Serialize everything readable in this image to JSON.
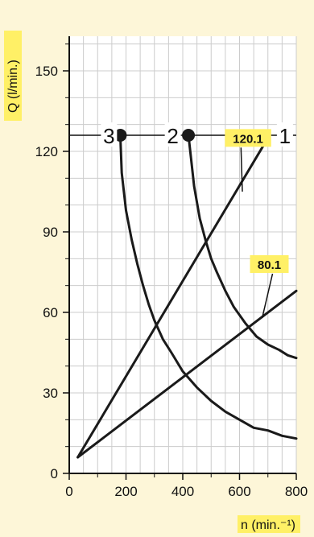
{
  "chart_data": {
    "type": "line",
    "xlabel": "n (min.⁻¹)",
    "ylabel": "Q (l/min.)",
    "xlim": [
      0,
      800
    ],
    "ylim": [
      0,
      165
    ],
    "xticks": [
      0,
      200,
      400,
      600,
      800
    ],
    "yticks": [
      0,
      30,
      60,
      90,
      120,
      150
    ],
    "grid": true,
    "reference_line_y": 126,
    "series": [
      {
        "name": "1",
        "kind": "line",
        "x": [
          30,
          700
        ],
        "y": [
          6,
          125
        ]
      },
      {
        "name": "80.1",
        "kind": "line",
        "x": [
          30,
          800
        ],
        "y": [
          6,
          68
        ]
      },
      {
        "name": "2",
        "kind": "curve",
        "marker_at_start": true,
        "x": [
          420,
          440,
          460,
          480,
          500,
          520,
          550,
          580,
          620,
          660,
          700,
          740,
          770,
          800
        ],
        "y": [
          126,
          107,
          95,
          87,
          80,
          75,
          68,
          62,
          56,
          51,
          48,
          46,
          44,
          43
        ]
      },
      {
        "name": "3",
        "kind": "curve",
        "marker_at_start": true,
        "x": [
          180,
          185,
          200,
          220,
          240,
          260,
          280,
          300,
          330,
          360,
          400,
          450,
          500,
          550,
          600,
          650,
          700,
          750,
          800
        ],
        "y": [
          126,
          112,
          98,
          87,
          78,
          70,
          63,
          57,
          50,
          45,
          38,
          32,
          27,
          23,
          20,
          17,
          16,
          14,
          13
        ]
      }
    ],
    "annotations": [
      {
        "text": "120.1",
        "x": 630,
        "y": 125
      },
      {
        "text": "80.1",
        "x": 705,
        "y": 78
      }
    ],
    "curve_labels": [
      {
        "text": "3",
        "x": 140,
        "y": 126
      },
      {
        "text": "2",
        "x": 365,
        "y": 126
      },
      {
        "text": "1",
        "x": 760,
        "y": 126
      }
    ],
    "colors": {
      "line": "#1a1a1a",
      "grid": "#cccccc",
      "highlight": "#fff066",
      "background": "#fdf6d8",
      "plot_bg": "#ffffff"
    }
  }
}
